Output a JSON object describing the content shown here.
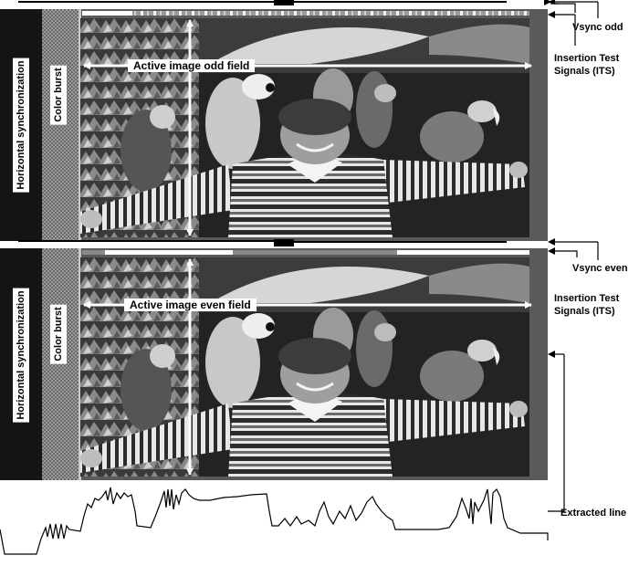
{
  "fields": {
    "odd": {
      "active_label": "Active image odd field",
      "hsync_label": "Horizontal synchronization",
      "burst_label": "Color burst",
      "vsync_label": "Vsync odd",
      "its_label_line1": "Insertion Test",
      "its_label_line2": "Signals (ITS)"
    },
    "even": {
      "active_label": "Active image even field",
      "hsync_label": "Horizontal synchronization",
      "burst_label": "Color burst",
      "vsync_label": "Vsync even",
      "its_label_line1": "Insertion Test",
      "its_label_line2": "Signals (ITS)"
    }
  },
  "extracted_line_label": "Extracted line",
  "colors": {
    "background": "#ffffff",
    "hsync_band": "#1a1a1a",
    "burst_band": "#8c8c8c",
    "image_frame": "#6e6e6e",
    "image_dark": "#202020",
    "stripes_light": "#f0f0f0",
    "stripes_dark": "#2a2a2a",
    "ink": "#000000"
  },
  "icons": [
    "arrow-left-icon",
    "arrow-double-horizontal-icon",
    "arrow-double-vertical-icon"
  ]
}
